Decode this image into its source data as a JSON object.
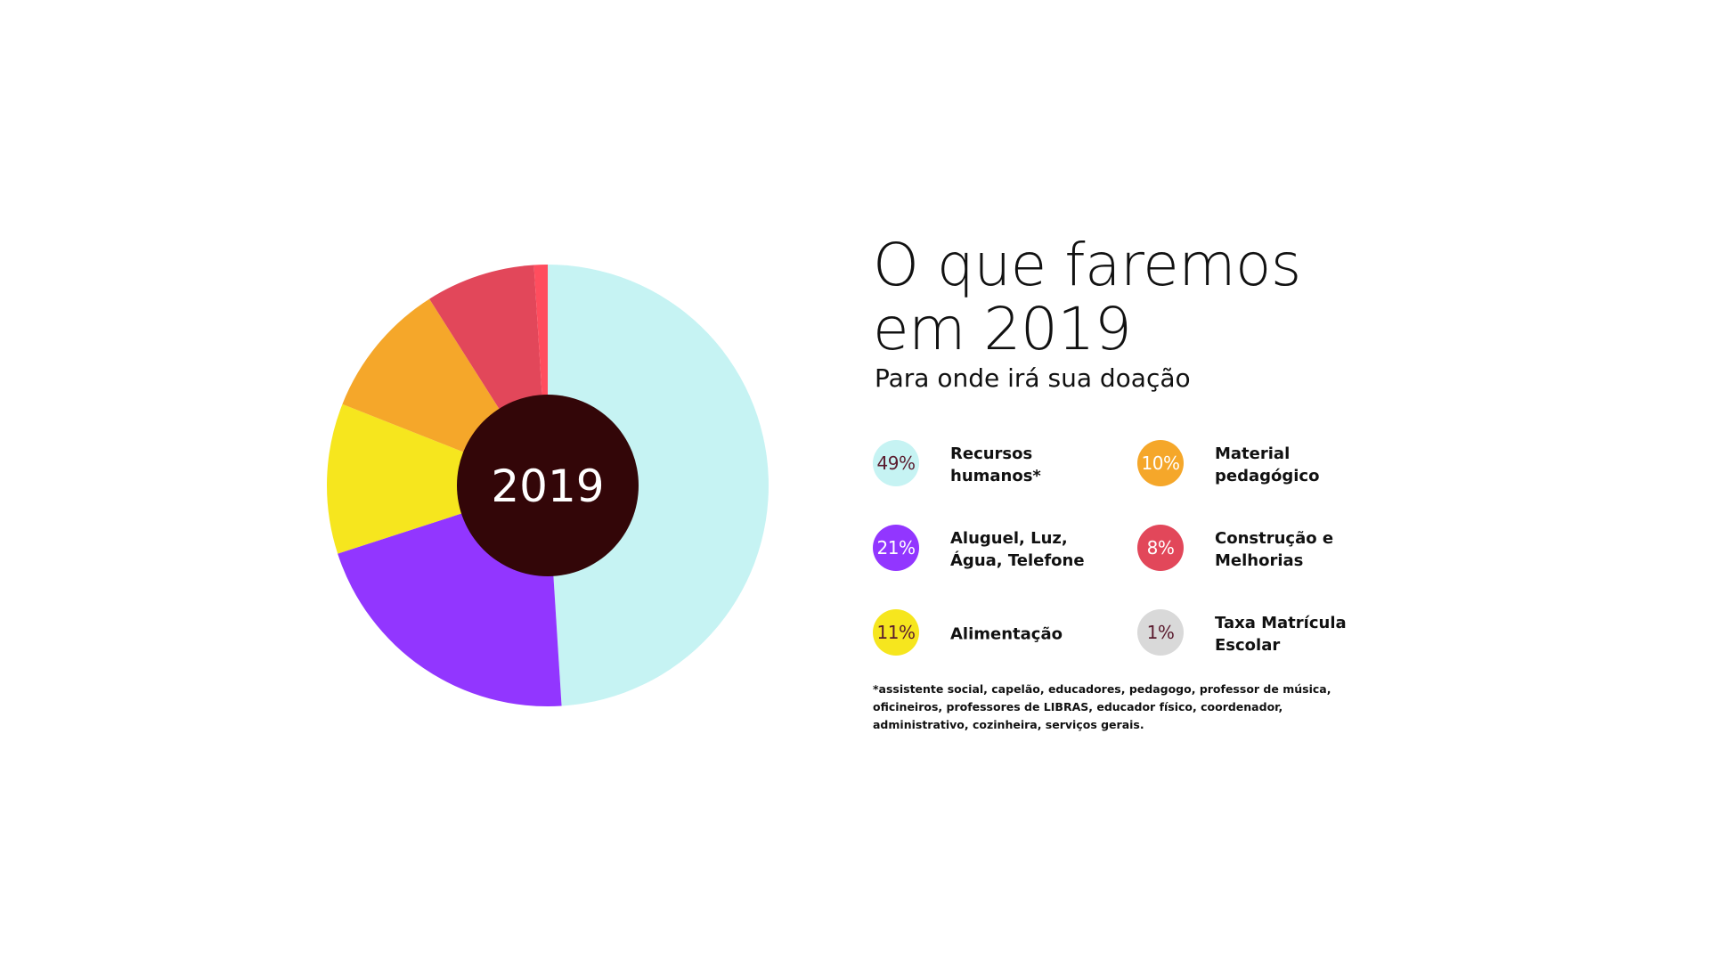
{
  "chart_data": {
    "type": "pie",
    "center_label": "2019",
    "slices": [
      {
        "label": "Recursos humanos*",
        "value": 49,
        "color": "#c6f3f3",
        "text_color": "#5a1b2e"
      },
      {
        "label": "Aluguel, Luz, Água, Telefone",
        "value": 21,
        "color": "#9236ff",
        "text_color": "#ffffff"
      },
      {
        "label": "Alimentação",
        "value": 11,
        "color": "#f6e61e",
        "text_color": "#5a1b2e"
      },
      {
        "label": "Material pedagógico",
        "value": 10,
        "color": "#f5a72a",
        "text_color": "#ffffff"
      },
      {
        "label": "Construção e Melhorias",
        "value": 8,
        "color": "#e2475a",
        "text_color": "#ffffff"
      },
      {
        "label": "Taxa Matrícula Escolar",
        "value": 1,
        "color": "#ff4d5e",
        "text_color": "#5a1b2e"
      }
    ],
    "center_color": "#330608"
  },
  "header": {
    "title": "O que faremos em 2019",
    "subtitle": "Para onde irá sua doação"
  },
  "legend": [
    {
      "percent": "49%",
      "label": "Recursos humanos*",
      "bubble_color": "#c6f3f3",
      "text_color": "#5a1b2e"
    },
    {
      "percent": "10%",
      "label": "Material pedagógico",
      "bubble_color": "#f5a72a",
      "text_color": "#ffffff"
    },
    {
      "percent": "21%",
      "label": "Aluguel, Luz, Água, Telefone",
      "bubble_color": "#9236ff",
      "text_color": "#ffffff"
    },
    {
      "percent": "8%",
      "label": "Construção e Melhorias",
      "bubble_color": "#e2475a",
      "text_color": "#ffffff"
    },
    {
      "percent": "11%",
      "label": "Alimentação",
      "bubble_color": "#f6e61e",
      "text_color": "#5a1b2e"
    },
    {
      "percent": "1%",
      "label": "Taxa Matrícula Escolar",
      "bubble_color": "#d9d9d9",
      "text_color": "#5a1b2e"
    }
  ],
  "footnote": "*assistente social, capelão, educadores, pedagogo, professor de música, oficineiros, professores de LIBRAS, educador físico, coordenador, administrativo, cozinheira, serviços gerais."
}
